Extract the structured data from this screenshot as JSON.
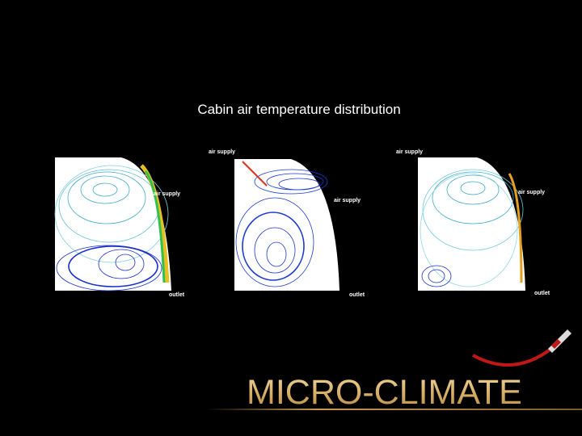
{
  "title": "Cabin air temperature distribution",
  "panels": [
    {
      "labels": [
        "air supply",
        "outlet"
      ]
    },
    {
      "labels": [
        "air supply",
        "air supply",
        "outlet"
      ]
    },
    {
      "labels": [
        "air supply",
        "air supply",
        "outlet"
      ]
    }
  ],
  "logo": "MICRO-CLIMATE"
}
